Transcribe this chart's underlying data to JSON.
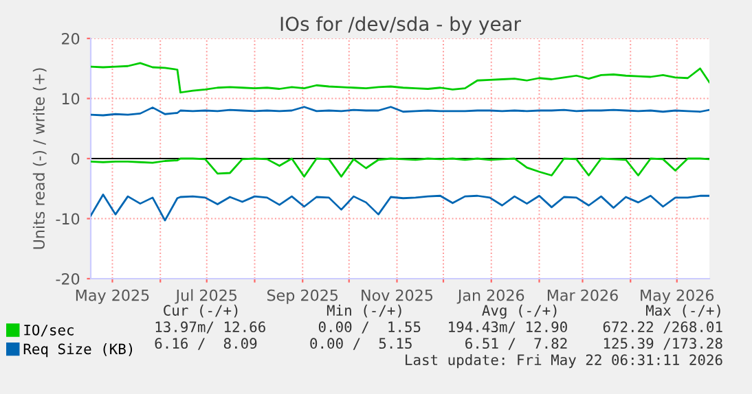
{
  "chart_data": {
    "type": "line",
    "title": "IOs for /dev/sda - by year",
    "ylabel": "Units read (-) / write (+)",
    "x": [
      "2025-04-17",
      "2025-04-25",
      "2025-05-03",
      "2025-05-11",
      "2025-05-19",
      "2025-05-27",
      "2025-06-04",
      "2025-06-12",
      "2025-06-14",
      "2025-06-22",
      "2025-06-30",
      "2025-07-08",
      "2025-07-16",
      "2025-07-24",
      "2025-08-01",
      "2025-08-09",
      "2025-08-17",
      "2025-08-25",
      "2025-09-02",
      "2025-09-10",
      "2025-09-18",
      "2025-09-26",
      "2025-10-04",
      "2025-10-12",
      "2025-10-20",
      "2025-10-28",
      "2025-11-05",
      "2025-11-13",
      "2025-11-21",
      "2025-11-29",
      "2025-12-07",
      "2025-12-15",
      "2025-12-23",
      "2025-12-31",
      "2026-01-08",
      "2026-01-16",
      "2026-01-24",
      "2026-02-01",
      "2026-02-09",
      "2026-02-17",
      "2026-02-25",
      "2026-03-05",
      "2026-03-13",
      "2026-03-21",
      "2026-03-29",
      "2026-04-06",
      "2026-04-14",
      "2026-04-22",
      "2026-04-30",
      "2026-05-08",
      "2026-05-16",
      "2026-05-22"
    ],
    "series": [
      {
        "name": "IO/sec",
        "color": "#00cc00",
        "values": [
          15.3,
          15.2,
          15.3,
          15.4,
          15.9,
          15.2,
          15.1,
          14.8,
          11.0,
          11.3,
          11.5,
          11.8,
          11.9,
          11.8,
          11.7,
          11.8,
          11.6,
          11.9,
          11.7,
          12.2,
          12.0,
          11.9,
          11.8,
          11.7,
          11.9,
          12.0,
          11.8,
          11.7,
          11.6,
          11.8,
          11.5,
          11.7,
          13.0,
          13.1,
          13.2,
          13.3,
          13.0,
          13.4,
          13.2,
          13.5,
          13.8,
          13.3,
          13.9,
          14.0,
          13.8,
          13.7,
          13.6,
          13.9,
          13.5,
          13.4,
          15.0,
          12.7
        ]
      },
      {
        "color": "#00cc00",
        "values": [
          -0.5,
          -0.6,
          -0.5,
          -0.5,
          -0.6,
          -0.7,
          -0.4,
          -0.3,
          0,
          0,
          -0.1,
          -2.5,
          -2.4,
          -0.1,
          0,
          -0.1,
          -1.2,
          0,
          -3.0,
          0,
          -0.1,
          -3.0,
          -0.1,
          -1.6,
          -0.2,
          0,
          -0.1,
          -0.2,
          0,
          -0.1,
          0,
          -0.2,
          0,
          -0.2,
          -0.1,
          0,
          -1.5,
          -2.2,
          -2.8,
          0,
          -0.1,
          -2.8,
          0,
          -0.1,
          -0.2,
          -2.8,
          0,
          -0.1,
          -2.0,
          0,
          0,
          -0.1
        ]
      },
      {
        "name": "Req Size (KB)",
        "color": "#0066b3",
        "values": [
          7.3,
          7.2,
          7.4,
          7.3,
          7.5,
          8.5,
          7.4,
          7.6,
          8.0,
          7.9,
          8.0,
          7.9,
          8.1,
          8.0,
          7.9,
          8.0,
          7.9,
          8.0,
          8.6,
          7.9,
          8.0,
          7.9,
          8.1,
          8.0,
          8.0,
          8.6,
          7.8,
          7.9,
          8.0,
          7.9,
          7.9,
          7.9,
          8.0,
          8.0,
          7.9,
          8.0,
          7.9,
          8.0,
          8.0,
          8.1,
          7.9,
          8.0,
          8.0,
          8.1,
          8.0,
          7.9,
          8.0,
          7.8,
          8.0,
          7.9,
          7.8,
          8.1
        ]
      },
      {
        "color": "#0066b3",
        "values": [
          -9.5,
          -6.0,
          -9.3,
          -6.3,
          -7.5,
          -6.5,
          -10.3,
          -6.6,
          -6.4,
          -6.3,
          -6.5,
          -7.6,
          -6.4,
          -7.2,
          -6.3,
          -6.5,
          -7.7,
          -6.3,
          -8.0,
          -6.4,
          -6.5,
          -8.5,
          -6.3,
          -7.3,
          -9.3,
          -6.4,
          -6.6,
          -6.5,
          -6.3,
          -6.2,
          -7.4,
          -6.3,
          -6.2,
          -6.5,
          -7.8,
          -6.3,
          -7.5,
          -6.2,
          -8.1,
          -6.4,
          -6.5,
          -7.8,
          -6.3,
          -8.2,
          -6.4,
          -7.3,
          -6.2,
          -8.0,
          -6.5,
          -6.5,
          -6.2,
          -6.2
        ]
      }
    ],
    "xlim": [
      "2025-04-17",
      "2026-05-22"
    ],
    "xticks": [
      {
        "value": "2025-05-01",
        "label": "May 2025"
      },
      {
        "value": "2025-06-01",
        "label": null
      },
      {
        "value": "2025-07-01",
        "label": "Jul 2025"
      },
      {
        "value": "2025-08-01",
        "label": null
      },
      {
        "value": "2025-09-01",
        "label": "Sep 2025"
      },
      {
        "value": "2025-10-01",
        "label": null
      },
      {
        "value": "2025-11-01",
        "label": "Nov 2025"
      },
      {
        "value": "2025-12-01",
        "label": null
      },
      {
        "value": "2026-01-01",
        "label": "Jan 2026"
      },
      {
        "value": "2026-02-01",
        "label": null
      },
      {
        "value": "2026-03-01",
        "label": "Mar 2026"
      },
      {
        "value": "2026-04-01",
        "label": null
      },
      {
        "value": "2026-05-01",
        "label": "May 2026"
      }
    ],
    "ylim": [
      -20,
      20
    ],
    "yticks": [
      -20,
      -10,
      0,
      10,
      20
    ],
    "ref_lines": [
      {
        "axis": "y",
        "value": 0,
        "color": "#000000"
      }
    ],
    "grid": true,
    "legend": "bottom left",
    "marker": "none",
    "line_style": "solid",
    "annotations": [
      "Cur (-/+)          Min (-/+)         Avg (-/+)          Max (-/+)",
      "13.97m/ 12.66      0.00 /  1.55   194.43m/ 12.90    672.22 /268.01",
      "  6.16 /  8.09      0.00 /  5.15      6.51 /  7.82    125.39 /173.28",
      "Last update: Fri May 22 06:31:11 2026"
    ]
  }
}
